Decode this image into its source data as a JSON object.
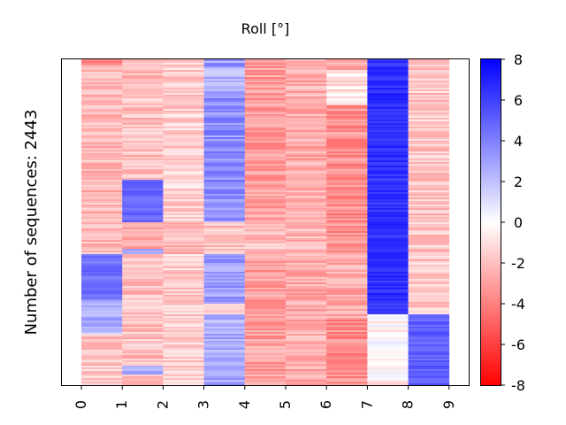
{
  "chart_data": {
    "type": "heatmap",
    "title": "Roll [°]",
    "ylabel": "Number of sequences: 2443",
    "xlabel": "",
    "x_tick_labels": [
      "0",
      "1",
      "2",
      "3",
      "4",
      "5",
      "6",
      "7",
      "8",
      "9"
    ],
    "colorbar": {
      "ticks": [
        "8",
        "6",
        "4",
        "2",
        "0",
        "-2",
        "-4",
        "-6",
        "-8"
      ],
      "range": [
        -8,
        8
      ],
      "colormap": "bwr",
      "min_color": "#ff0000",
      "mid_color": "#ffffff",
      "max_color": "#0000ff"
    },
    "rows": 2443,
    "approx_column_segments": [
      [
        {
          "to": 0.02,
          "value": -4.0
        },
        {
          "to": 0.6,
          "value": -2.2
        },
        {
          "to": 0.74,
          "value": 4.5
        },
        {
          "to": 0.84,
          "value": 2.5
        },
        {
          "to": 1.0,
          "value": -1.8
        }
      ],
      [
        {
          "to": 0.37,
          "value": -2.0
        },
        {
          "to": 0.5,
          "value": 4.8
        },
        {
          "to": 0.58,
          "value": -2.5
        },
        {
          "to": 0.6,
          "value": 2.0
        },
        {
          "to": 0.94,
          "value": -2.0
        },
        {
          "to": 0.97,
          "value": 3.0
        },
        {
          "to": 1.0,
          "value": -1.8
        }
      ],
      [
        {
          "to": 0.5,
          "value": -1.5
        },
        {
          "to": 0.6,
          "value": -2.2
        },
        {
          "to": 1.0,
          "value": -1.5
        }
      ],
      [
        {
          "to": 0.02,
          "value": 3.2
        },
        {
          "to": 0.1,
          "value": 2.2
        },
        {
          "to": 0.5,
          "value": 3.5
        },
        {
          "to": 0.6,
          "value": -2.0
        },
        {
          "to": 0.75,
          "value": 3.0
        },
        {
          "to": 0.78,
          "value": -2.0
        },
        {
          "to": 0.8,
          "value": 2.5
        },
        {
          "to": 1.0,
          "value": 2.8
        }
      ],
      [
        {
          "to": 0.5,
          "value": -3.0
        },
        {
          "to": 0.6,
          "value": -2.0
        },
        {
          "to": 1.0,
          "value": -3.0
        }
      ],
      [
        {
          "to": 0.5,
          "value": -2.6
        },
        {
          "to": 0.6,
          "value": -2.2
        },
        {
          "to": 1.0,
          "value": -2.6
        }
      ],
      [
        {
          "to": 0.03,
          "value": -3.0
        },
        {
          "to": 0.14,
          "value": -1.0
        },
        {
          "to": 0.6,
          "value": -3.5
        },
        {
          "to": 0.8,
          "value": -2.5
        },
        {
          "to": 1.0,
          "value": -3.5
        }
      ],
      [
        {
          "to": 0.78,
          "value": 6.5
        },
        {
          "to": 1.0,
          "value": -0.3
        }
      ],
      [
        {
          "to": 0.78,
          "value": -1.8
        },
        {
          "to": 1.0,
          "value": 5.0
        }
      ]
    ]
  }
}
